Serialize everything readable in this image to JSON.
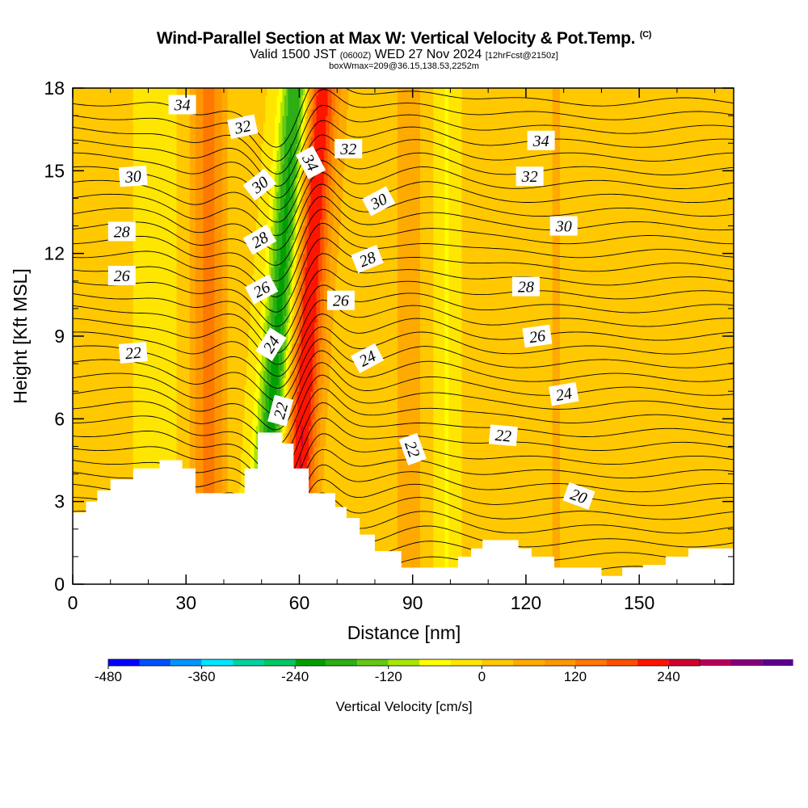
{
  "header": {
    "title": "Wind-Parallel Section at Max W: Vertical Velocity & Pot.Temp.",
    "title_suffix": "(C)",
    "valid_prefix": "Valid 1500 JST",
    "valid_small": "(0600Z)",
    "valid_date": "WED 27 Nov 2024",
    "valid_fcst": "[12hrFcst@2150z]",
    "box_line": "boxWmax=209@36.15,138.53,2252m"
  },
  "chart_data": {
    "type": "heatmap",
    "title": "Wind-Parallel Section at Max W: Vertical Velocity & Pot.Temp.",
    "xlabel": "Distance [nm]",
    "ylabel": "Height [Kft MSL]",
    "xlim": [
      0,
      175
    ],
    "ylim": [
      0,
      18
    ],
    "x_ticks": [
      0,
      30,
      60,
      90,
      120,
      150
    ],
    "y_ticks": [
      0,
      3,
      6,
      9,
      12,
      15,
      18
    ],
    "colorbar": {
      "label": "Vertical Velocity [cm/s]",
      "min": -480,
      "max": 280,
      "step": 40,
      "tick_values": [
        -480,
        -360,
        -240,
        -120,
        0,
        120,
        240
      ],
      "tick_labels": [
        "-480",
        "-360",
        "-240",
        "-120",
        "0",
        "120",
        "240"
      ],
      "colors": [
        "#0000ff",
        "#0050ff",
        "#0096ff",
        "#00e6ff",
        "#00d2a0",
        "#00c864",
        "#00a000",
        "#2daf14",
        "#64c814",
        "#aae600",
        "#ffff00",
        "#ffe600",
        "#ffc800",
        "#ffaa00",
        "#ff9600",
        "#ff7800",
        "#ff5000",
        "#ff1400",
        "#d2002d",
        "#b4005a",
        "#820078",
        "#5a008c"
      ]
    },
    "velocity_bands": [
      {
        "x_base": 36,
        "x_slope": 0,
        "half_width": 4.5,
        "value": 130
      },
      {
        "x_base": 54.5,
        "x_slope": 0.55,
        "half_width": 4,
        "value": -230
      },
      {
        "x_base": 62,
        "x_slope": 0.4,
        "half_width": 4.5,
        "value": 240
      },
      {
        "x_base": 89,
        "x_slope": 0,
        "half_width": 4,
        "value": 60
      },
      {
        "x_base": 128,
        "x_slope": 0,
        "half_width": 2.5,
        "value": 40
      },
      {
        "x_base": 147,
        "x_slope": 0,
        "half_width": 5,
        "value": 25
      },
      {
        "x_base": 22,
        "x_slope": 0,
        "half_width": 4,
        "value": -40
      },
      {
        "x_base": 73,
        "x_slope": 0,
        "half_width": 5,
        "value": 20
      },
      {
        "x_base": 99,
        "x_slope": 0,
        "half_width": 2.5,
        "value": -45
      },
      {
        "x_base": 113,
        "x_slope": 0,
        "half_width": 3,
        "value": 25
      },
      {
        "x_base": 166,
        "x_slope": 0,
        "half_width": 4,
        "value": 35
      }
    ],
    "terrain": [
      [
        0,
        2.6
      ],
      [
        3.5,
        2.6
      ],
      [
        3.5,
        3.0
      ],
      [
        6.5,
        3.0
      ],
      [
        6.5,
        3.4
      ],
      [
        10,
        3.4
      ],
      [
        10,
        3.8
      ],
      [
        16,
        3.8
      ],
      [
        16,
        4.2
      ],
      [
        23,
        4.2
      ],
      [
        23,
        4.5
      ],
      [
        29,
        4.5
      ],
      [
        29,
        4.2
      ],
      [
        32.5,
        4.2
      ],
      [
        32.5,
        3.3
      ],
      [
        45.5,
        3.3
      ],
      [
        45.5,
        4.2
      ],
      [
        49,
        4.2
      ],
      [
        49,
        5.5
      ],
      [
        55.5,
        5.5
      ],
      [
        55.5,
        5.1
      ],
      [
        58.5,
        5.1
      ],
      [
        58.5,
        4.2
      ],
      [
        62.5,
        4.2
      ],
      [
        62.5,
        3.3
      ],
      [
        69.5,
        3.3
      ],
      [
        69.5,
        2.8
      ],
      [
        72.5,
        2.8
      ],
      [
        72.5,
        2.4
      ],
      [
        76,
        2.4
      ],
      [
        76,
        1.8
      ],
      [
        80,
        1.8
      ],
      [
        80,
        1.2
      ],
      [
        87,
        1.2
      ],
      [
        87,
        0.6
      ],
      [
        102,
        0.6
      ],
      [
        102,
        1.0
      ],
      [
        105.5,
        1.0
      ],
      [
        105.5,
        1.3
      ],
      [
        108.5,
        1.3
      ],
      [
        108.5,
        1.6
      ],
      [
        118,
        1.6
      ],
      [
        118,
        1.3
      ],
      [
        121.5,
        1.3
      ],
      [
        121.5,
        1.0
      ],
      [
        127.5,
        1.0
      ],
      [
        127.5,
        0.6
      ],
      [
        140,
        0.6
      ],
      [
        140,
        0.3
      ],
      [
        145.5,
        0.3
      ],
      [
        145.5,
        0.6
      ],
      [
        151,
        0.6
      ],
      [
        151,
        0.7
      ],
      [
        157,
        0.7
      ],
      [
        157,
        1.0
      ],
      [
        163,
        1.0
      ],
      [
        163,
        1.3
      ],
      [
        175,
        1.3
      ]
    ],
    "theta_contours": {
      "min": 18,
      "max": 35,
      "step": 0.5,
      "base_height": -17.5,
      "kft_per_degree": 1.0,
      "perturbations": [
        {
          "x": 56,
          "width": 9,
          "amp": -1.8
        },
        {
          "x": 64,
          "width": 7,
          "amp": 1.6
        },
        {
          "x": 33,
          "width": 8,
          "amp": -0.6
        },
        {
          "x": 92,
          "width": 12,
          "amp": 0.5
        }
      ]
    },
    "contour_labels": [
      {
        "text": "34",
        "x": 29,
        "y": 17.4,
        "angle": 0
      },
      {
        "text": "32",
        "x": 45,
        "y": 16.6,
        "angle": 12
      },
      {
        "text": "30",
        "x": 16,
        "y": 14.8,
        "angle": 4
      },
      {
        "text": "30",
        "x": 49.5,
        "y": 14.5,
        "angle": 38
      },
      {
        "text": "34",
        "x": 63,
        "y": 15.3,
        "angle": -62
      },
      {
        "text": "32",
        "x": 73,
        "y": 15.8,
        "angle": 0
      },
      {
        "text": "34",
        "x": 124,
        "y": 16.1,
        "angle": 0
      },
      {
        "text": "32",
        "x": 121,
        "y": 14.8,
        "angle": 0
      },
      {
        "text": "30",
        "x": 81,
        "y": 13.9,
        "angle": 28
      },
      {
        "text": "30",
        "x": 130,
        "y": 13.0,
        "angle": 0
      },
      {
        "text": "28",
        "x": 13,
        "y": 12.8,
        "angle": 0
      },
      {
        "text": "28",
        "x": 49.5,
        "y": 12.5,
        "angle": 30
      },
      {
        "text": "28",
        "x": 78,
        "y": 11.8,
        "angle": 22
      },
      {
        "text": "28",
        "x": 120,
        "y": 10.8,
        "angle": 0
      },
      {
        "text": "26",
        "x": 13,
        "y": 11.2,
        "angle": 0
      },
      {
        "text": "26",
        "x": 50,
        "y": 10.7,
        "angle": 28
      },
      {
        "text": "26",
        "x": 71,
        "y": 10.3,
        "angle": 0
      },
      {
        "text": "26",
        "x": 123,
        "y": 9.0,
        "angle": 8
      },
      {
        "text": "22",
        "x": 16,
        "y": 8.4,
        "angle": 5
      },
      {
        "text": "24",
        "x": 52.5,
        "y": 8.7,
        "angle": 58
      },
      {
        "text": "24",
        "x": 78,
        "y": 8.2,
        "angle": 28
      },
      {
        "text": "24",
        "x": 130,
        "y": 6.9,
        "angle": 10
      },
      {
        "text": "22",
        "x": 55,
        "y": 6.3,
        "angle": 75
      },
      {
        "text": "22",
        "x": 90,
        "y": 4.9,
        "angle": -70
      },
      {
        "text": "22",
        "x": 114,
        "y": 5.4,
        "angle": -5
      },
      {
        "text": "20",
        "x": 134,
        "y": 3.2,
        "angle": -20
      }
    ]
  }
}
